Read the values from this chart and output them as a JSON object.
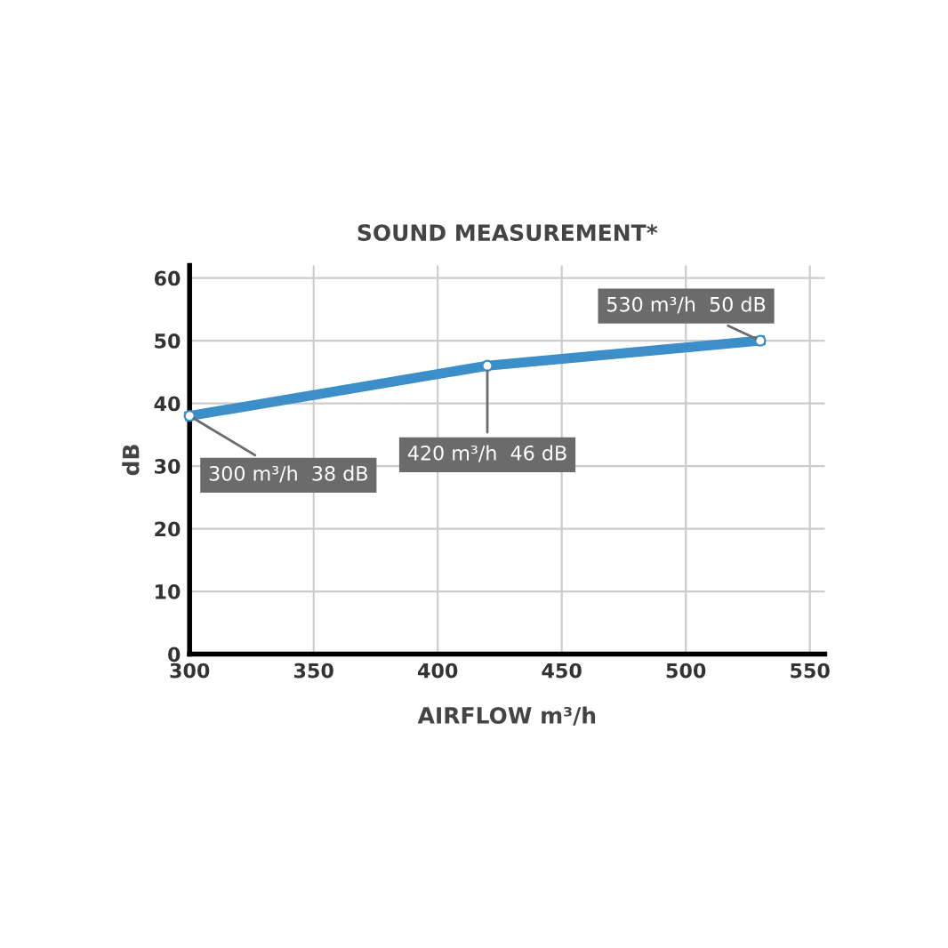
{
  "chart_data": {
    "type": "line",
    "title": "SOUND MEASUREMENT*",
    "xlabel": "AIRFLOW m³/h",
    "ylabel": "dB",
    "x": [
      300,
      420,
      530
    ],
    "series": [
      {
        "color": "#3b8ec8",
        "values": [
          38,
          46,
          50
        ]
      }
    ],
    "xlim": [
      300,
      556
    ],
    "ylim": [
      0,
      62
    ],
    "xticks": [
      300,
      350,
      400,
      450,
      500,
      550
    ],
    "yticks": [
      0,
      10,
      20,
      30,
      40,
      50,
      60
    ],
    "grid": true,
    "marker": "circle",
    "line_style": "solid",
    "annotations": [
      {
        "text": "300 m³/h  38 dB",
        "x": 300,
        "y": 38
      },
      {
        "text": "420 m³/h  46 dB",
        "x": 420,
        "y": 46
      },
      {
        "text": "530 m³/h  50 dB",
        "x": 530,
        "y": 50
      }
    ]
  }
}
